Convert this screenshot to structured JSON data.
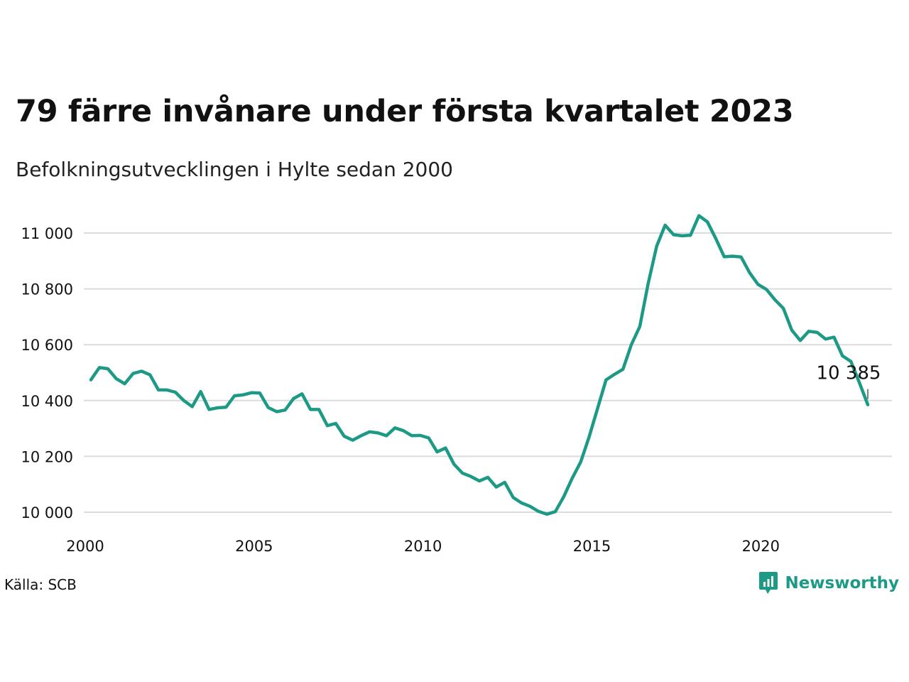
{
  "header": {
    "title": "79 färre invånare under första kvartalet 2023",
    "subtitle": "Befolkningsutvecklingen i Hylte sedan 2000"
  },
  "footer": {
    "source": "Källa: SCB",
    "brand": "Newsworthy",
    "brand_icon": "newsworthy-logo-icon"
  },
  "colors": {
    "line": "#1d9a86",
    "grid": "#dcdcdc",
    "brand": "#1d9a86"
  },
  "chart_data": {
    "type": "line",
    "title": "79 färre invånare under första kvartalet 2023",
    "subtitle": "Befolkningsutvecklingen i Hylte sedan 2000",
    "xlabel": "",
    "ylabel": "",
    "grid": "horizontal",
    "xlim": [
      2000,
      2024
    ],
    "ylim": [
      9950,
      11080
    ],
    "x_ticks": [
      2000,
      2005,
      2010,
      2015,
      2020
    ],
    "x_tick_labels": [
      "2000",
      "2005",
      "2010",
      "2015",
      "2020"
    ],
    "y_ticks": [
      10000,
      10200,
      10400,
      10600,
      10800,
      11000
    ],
    "y_tick_labels": [
      "10 000",
      "10 200",
      "10 400",
      "10 600",
      "10 800",
      "11 000"
    ],
    "annotation": {
      "x": 2023.0,
      "y": 10385,
      "label": "10 385"
    },
    "series": [
      {
        "x": [
          2000.0,
          2000.25,
          2000.5,
          2000.75,
          2001.0,
          2001.25,
          2001.5,
          2001.75,
          2002.0,
          2002.25,
          2002.5,
          2002.75,
          2003.0,
          2003.25,
          2003.5,
          2003.75,
          2004.0,
          2004.25,
          2004.5,
          2004.75,
          2005.0,
          2005.25,
          2005.5,
          2005.75,
          2006.0,
          2006.25,
          2006.5,
          2006.75,
          2007.0,
          2007.25,
          2007.5,
          2007.75,
          2008.0,
          2008.25,
          2008.5,
          2008.75,
          2009.0,
          2009.25,
          2009.5,
          2009.75,
          2010.0,
          2010.25,
          2010.5,
          2010.75,
          2011.0,
          2011.25,
          2011.5,
          2011.75,
          2012.0,
          2012.25,
          2012.5,
          2012.75,
          2013.0,
          2013.25,
          2013.5,
          2013.75,
          2014.0,
          2014.25,
          2014.5,
          2014.75,
          2015.0,
          2015.25,
          2015.5,
          2015.75,
          2016.0,
          2016.25,
          2016.5,
          2016.75,
          2017.0,
          2017.25,
          2017.5,
          2017.75,
          2018.0,
          2018.25,
          2018.5,
          2018.75,
          2019.0,
          2019.25,
          2019.5,
          2019.75,
          2020.0,
          2020.25,
          2020.5,
          2020.75,
          2021.0,
          2021.25,
          2021.5,
          2021.75,
          2022.0,
          2022.25,
          2022.5,
          2022.75,
          2023.0
        ],
        "values": [
          10474,
          10518,
          10514,
          10478,
          10460,
          10497,
          10505,
          10492,
          10438,
          10438,
          10430,
          10400,
          10378,
          10432,
          10368,
          10374,
          10376,
          10417,
          10420,
          10428,
          10427,
          10375,
          10360,
          10366,
          10407,
          10424,
          10368,
          10368,
          10310,
          10318,
          10272,
          10258,
          10274,
          10288,
          10284,
          10274,
          10302,
          10292,
          10274,
          10275,
          10266,
          10216,
          10230,
          10172,
          10140,
          10128,
          10112,
          10125,
          10090,
          10107,
          10053,
          10033,
          10021,
          10003,
          9993,
          10002,
          10056,
          10122,
          10180,
          10270,
          10372,
          10474,
          10494,
          10512,
          10600,
          10665,
          10820,
          10953,
          11028,
          10994,
          10990,
          10992,
          11062,
          11040,
          10980,
          10915,
          10917,
          10914,
          10858,
          10816,
          10798,
          10761,
          10730,
          10652,
          10615,
          10648,
          10644,
          10620,
          10627,
          10560,
          10540,
          10464,
          10385
        ]
      }
    ]
  }
}
